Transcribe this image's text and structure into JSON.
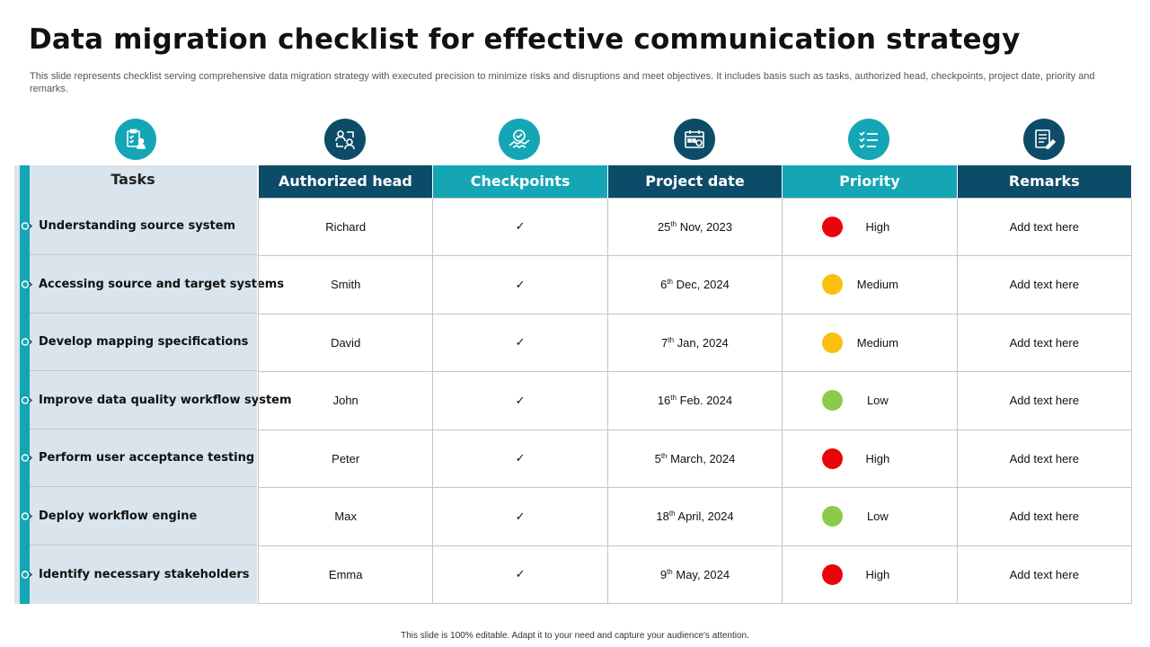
{
  "title": "Data migration checklist for effective communication strategy",
  "subtitle": "This slide represents checklist serving comprehensive data migration strategy with executed precision to minimize risks and disruptions and meet objectives. It includes basis such as tasks, authorized head, checkpoints, project date, priority and remarks.",
  "tasks_header": "Tasks",
  "tasks": [
    "Understanding source system",
    "Accessing  source and target systems",
    "Develop mapping specifications",
    "Improve data quality workflow system",
    "Perform user acceptance testing",
    "Deploy workflow engine",
    "Identify necessary stakeholders"
  ],
  "columns": [
    "Authorized head",
    "Checkpoints",
    "Project date",
    "Priority",
    "Remarks"
  ],
  "icons": [
    "clipboard-user-icon",
    "people-network-icon",
    "handshake-check-icon",
    "calendar-icon",
    "checklist-icon",
    "document-edit-icon"
  ],
  "colors": {
    "teal": "#14a6b5",
    "navy": "#0d4c68",
    "high": "#e8060b",
    "medium": "#fbbf0e",
    "low": "#8ccb4a",
    "check": "#14a86e"
  },
  "rows": [
    {
      "head": "Richard",
      "check": "✓",
      "day": "25",
      "suffix": "th",
      "rest": " Nov,  2023",
      "priority": "High",
      "priority_color": "#e8060b",
      "remarks": "Add text here"
    },
    {
      "head": "Smith",
      "check": "✓",
      "day": "6",
      "suffix": "th",
      "rest": " Dec, 2024",
      "priority": "Medium",
      "priority_color": "#fbbf0e",
      "remarks": "Add text here"
    },
    {
      "head": "David",
      "check": "✓",
      "day": "7",
      "suffix": "th",
      "rest": " Jan, 2024",
      "priority": "Medium",
      "priority_color": "#fbbf0e",
      "remarks": "Add text here"
    },
    {
      "head": "John",
      "check": "✓",
      "day": "16",
      "suffix": "th",
      "rest": " Feb. 2024",
      "priority": "Low",
      "priority_color": "#8ccb4a",
      "remarks": "Add text here"
    },
    {
      "head": "Peter",
      "check": "✓",
      "day": "5",
      "suffix": "th",
      "rest": " March,  2024",
      "priority": "High",
      "priority_color": "#e8060b",
      "remarks": "Add text here"
    },
    {
      "head": "Max",
      "check": "✓",
      "day": "18",
      "suffix": "th",
      "rest": " April, 2024",
      "priority": "Low",
      "priority_color": "#8ccb4a",
      "remarks": "Add text here"
    },
    {
      "head": "Emma",
      "check": "✓",
      "day": "9",
      "suffix": "th",
      "rest": " May, 2024",
      "priority": "High",
      "priority_color": "#e8060b",
      "remarks": "Add text here"
    }
  ],
  "footer": "This slide is 100% editable.  Adapt it to your need and capture your audience's attention."
}
